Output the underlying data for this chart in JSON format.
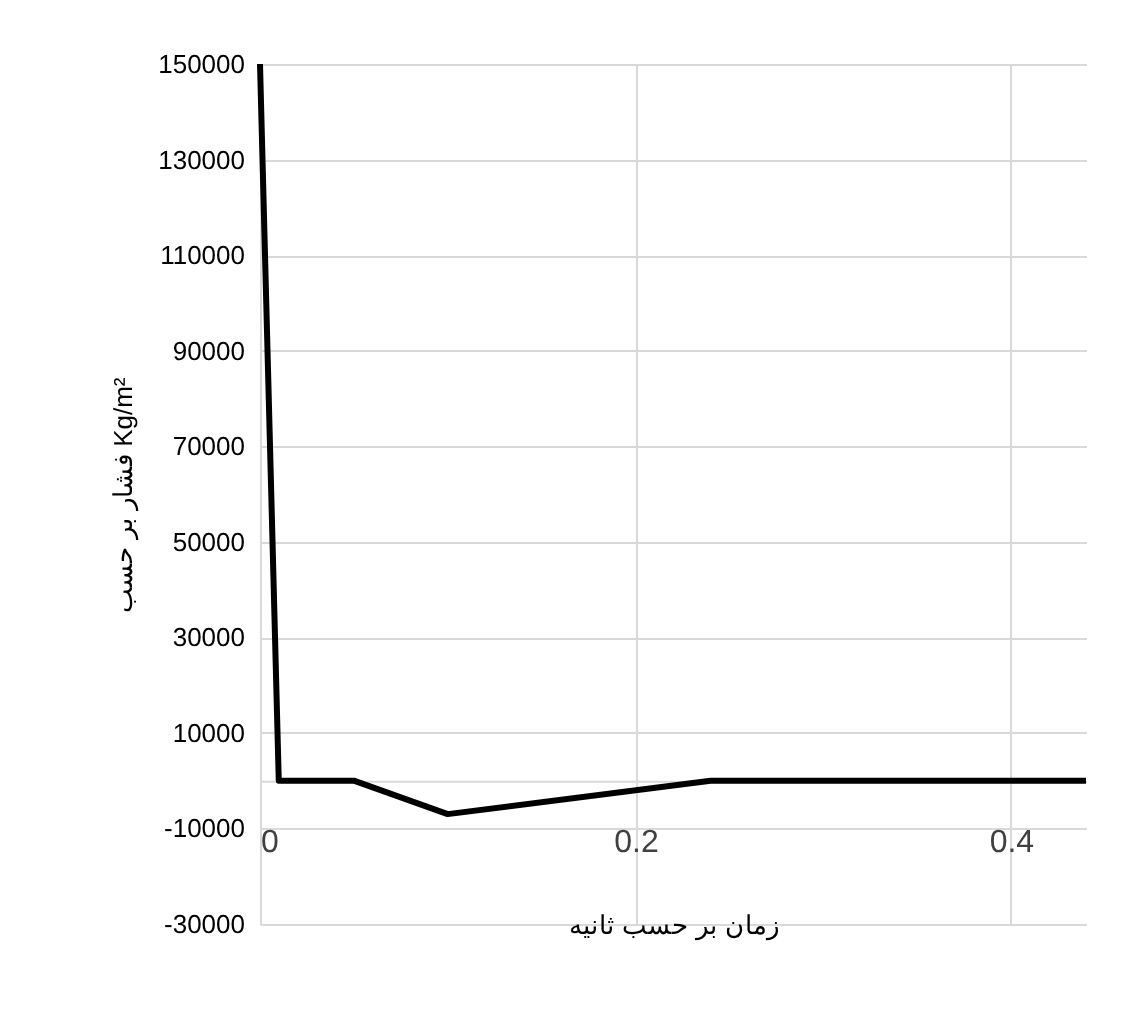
{
  "chart_data": {
    "type": "line",
    "xlabel": "زمان بر حسب ثانیه",
    "ylabel": "فشار بر حسب Kg/m²",
    "x": [
      0,
      0.01,
      0.05,
      0.1,
      0.24,
      0.44
    ],
    "series": [
      {
        "color": "#000000",
        "values": [
          150000,
          0,
          0,
          -7000,
          0,
          0
        ]
      }
    ],
    "xlim": [
      0,
      0.44
    ],
    "xticks": [
      0,
      0.2,
      0.4
    ],
    "ylim": [
      -30000,
      150000
    ],
    "yticks": [
      -30000,
      -10000,
      10000,
      30000,
      50000,
      70000,
      90000,
      110000,
      130000,
      150000
    ],
    "grid": true,
    "legend": false
  }
}
